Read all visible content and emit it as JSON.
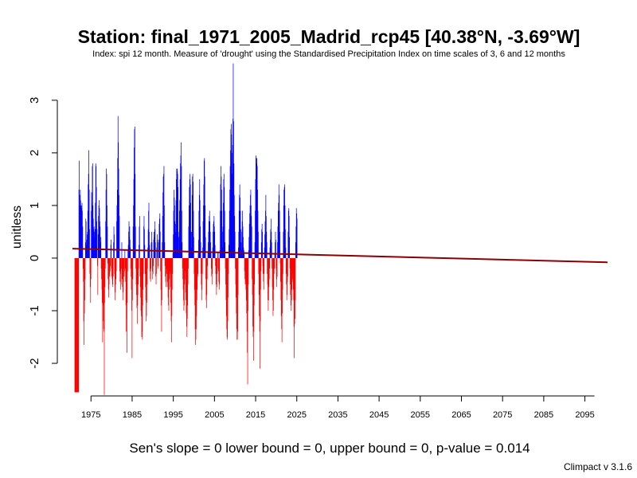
{
  "chart_data": {
    "type": "bar",
    "title": "Station: final_1971_2005_Madrid_rcp45 [40.38°N, -3.69°W]",
    "subtitle": "Index: spi 12 month. Measure of 'drought' using the Standardised Precipitation Index on time scales of 3, 6 and 12 months",
    "xlabel": "",
    "ylabel": "unitless",
    "xlim": [
      1970.5,
      2100.5
    ],
    "ylim": [
      -2.62,
      3.8
    ],
    "x_ticks": [
      1975,
      1985,
      1995,
      2005,
      2015,
      2025,
      2035,
      2045,
      2055,
      2065,
      2075,
      2085,
      2095
    ],
    "y_ticks": [
      -2,
      -1,
      0,
      1,
      2,
      3
    ],
    "positive_color": "#0000ff",
    "negative_color": "#ff0000",
    "trend_color": "#8b0000",
    "x_start": 1971.0,
    "x_step": 0.08333,
    "values": [
      -2.55,
      -2.55,
      -2.55,
      -2.55,
      -2.55,
      -2.55,
      -2.55,
      -2.55,
      -2.55,
      -2.55,
      -2.55,
      -2.55,
      1.3,
      1.85,
      1.0,
      1.2,
      1.3,
      1.1,
      1.0,
      0.95,
      1.0,
      1.05,
      0.9,
      0.6,
      -0.2,
      -0.45,
      -1.2,
      -1.65,
      -1.05,
      -0.8,
      -0.4,
      0.3,
      0.75,
      0.7,
      0.25,
      0.35,
      0.45,
      0.5,
      0.9,
      1.4,
      1.6,
      2.05,
      1.3,
      0.55,
      -0.3,
      -0.55,
      -0.85,
      -0.4,
      0.9,
      1.25,
      1.05,
      1.75,
      1.8,
      1.0,
      0.75,
      0.55,
      0.6,
      0.4,
      0.5,
      0.55,
      1.05,
      1.8,
      1.75,
      1.35,
      0.7,
      0.55,
      -0.15,
      -0.7,
      0.45,
      0.8,
      1.0,
      1.1,
      0.95,
      0.7,
      0.6,
      0.3,
      0.4,
      -0.2,
      -0.4,
      -0.6,
      -0.85,
      -1.6,
      -0.9,
      -1.2,
      -1.35,
      -1.4,
      -2.6,
      -0.85,
      -0.55,
      -0.2,
      0.7,
      1.3,
      1.7,
      1.6,
      1.0,
      0.6,
      -0.1,
      -0.4,
      -0.6,
      -0.75,
      -0.5,
      -0.3,
      -0.35,
      -0.25,
      -0.15,
      0.25,
      0.35,
      -0.2,
      -0.35,
      -0.4,
      -0.5,
      -0.55,
      -0.35,
      0.3,
      0.6,
      0.45,
      -0.3,
      -0.8,
      -0.65,
      -0.5,
      -0.4,
      -0.25,
      0.7,
      1.0,
      1.3,
      1.9,
      2.7,
      2.2,
      1.7,
      1.2,
      0.8,
      -0.25,
      -0.45,
      -0.3,
      -0.6,
      -0.5,
      -0.2,
      0.3,
      -0.4,
      -0.55,
      -0.8,
      -0.65,
      -0.45,
      -0.2,
      -0.35,
      -0.25,
      0.15,
      -0.2,
      -0.45,
      -0.9,
      -1.4,
      -1.15,
      -1.8,
      -0.85,
      -0.25,
      0.15,
      0.25,
      0.5,
      0.7,
      0.4,
      0.6,
      0.35,
      0.2,
      -0.2,
      -0.35,
      -0.6,
      -1.0,
      -1.9,
      -0.8,
      -0.4,
      0.6,
      1.0,
      1.5,
      2.1,
      2.45,
      2.5,
      1.6,
      0.6,
      -0.2,
      -0.5,
      -0.7,
      -0.95,
      -1.25,
      -0.9,
      -0.7,
      -0.5,
      -0.2,
      0.25,
      0.6,
      0.8,
      -0.35,
      -0.55,
      -0.75,
      -1.0,
      -1.1,
      -1.5,
      -1.4,
      -1.55,
      -0.9,
      -0.6,
      -0.3,
      0.6,
      0.8,
      0.55,
      0.25,
      -0.3,
      -0.55,
      -0.8,
      -1.2,
      -1.1,
      -0.85,
      -0.5,
      -0.2,
      0.2,
      0.55,
      0.9,
      1.05,
      0.5,
      0.25,
      -0.25,
      -0.4,
      -0.45,
      -0.2,
      0.3,
      0.5,
      0.3,
      -0.25,
      -0.4,
      -0.3,
      -0.15,
      0.35,
      0.5,
      0.4,
      0.7,
      0.55,
      0.3,
      -0.35,
      -0.5,
      -0.3,
      0.2,
      0.45,
      0.35,
      -0.2,
      -0.15,
      0.3,
      0.35,
      0.65,
      0.75,
      0.85,
      0.5,
      -0.25,
      -0.6,
      -0.9,
      -1.4,
      -0.8,
      0.3,
      0.8,
      1.25,
      1.55,
      1.6,
      1.75,
      1.0,
      0.3,
      -0.15,
      -0.35,
      -0.45,
      -0.55,
      -0.3,
      -0.2,
      -0.3,
      -0.45,
      -0.55,
      -0.75,
      -0.9,
      -1.0,
      -0.6,
      -0.4,
      -0.25,
      -0.3,
      -0.55,
      -0.85,
      -1.2,
      -1.6,
      -1.1,
      -0.6,
      -0.3,
      0.1,
      0.45,
      0.9,
      1.3,
      1.15,
      1.0,
      0.7,
      0.5,
      0.65,
      1.1,
      1.5,
      1.7,
      1.65,
      1.7,
      1.6,
      1.35,
      0.5,
      0.1,
      0.4,
      0.9,
      1.1,
      1.5,
      1.8,
      1.95,
      2.2,
      1.75,
      0.9,
      0.3,
      -0.2,
      -0.4,
      -0.6,
      -0.8,
      -1.0,
      -0.9,
      -0.5,
      -0.25,
      -0.4,
      -0.65,
      -0.8,
      -1.05,
      -1.3,
      -1.5,
      -1.15,
      -0.9,
      -0.5,
      -0.2,
      0.6,
      1.0,
      1.35,
      1.5,
      1.6,
      1.4,
      1.05,
      0.5,
      0.2,
      0.5,
      1.2,
      1.55,
      1.6,
      1.45,
      0.9,
      0.4,
      -0.3,
      -0.6,
      -0.9,
      -1.35,
      -1.65,
      -1.55,
      -1.35,
      -1.1,
      -0.8,
      -0.6,
      -0.35,
      -0.3,
      0.1,
      0.35,
      0.9,
      1.2,
      1.5,
      1.1,
      0.6,
      0.3,
      -0.3,
      -0.5,
      -0.8,
      -0.6,
      -0.3,
      0.2,
      0.7,
      1.0,
      1.4,
      1.85,
      1.9,
      1.55,
      1.0,
      0.4,
      -0.4,
      -0.8,
      -0.95,
      -0.7,
      -0.4,
      -0.15,
      0.1,
      0.3,
      0.5,
      0.7,
      0.8,
      0.9,
      0.7,
      0.5,
      0.3,
      0.1,
      -0.2,
      -0.35,
      -0.5,
      -0.3,
      0.2,
      0.5,
      0.65,
      0.7,
      0.8,
      0.6,
      0.5,
      0.25,
      -0.15,
      -0.3,
      -0.5,
      -0.7,
      -0.55,
      -0.3,
      -0.2,
      0.1,
      0.1,
      -0.25,
      -0.45,
      -0.6,
      -0.5,
      0.15,
      0.9,
      1.4,
      1.75,
      1.55,
      1.3,
      0.9,
      0.5,
      0.2,
      0.6,
      1.05,
      1.5,
      1.6,
      1.35,
      0.9,
      0.3,
      -0.2,
      -0.5,
      -0.8,
      -1.1,
      -1.35,
      -1.5,
      -1.55,
      -1.2,
      -0.75,
      -0.3,
      0.25,
      0.55,
      0.9,
      1.3,
      1.75,
      2.05,
      2.45,
      2.55,
      2.35,
      2.0,
      1.6,
      2.15,
      2.65,
      3.7,
      2.6,
      1.8,
      1.2,
      0.8,
      0.5,
      -0.2,
      -0.5,
      -0.75,
      -1.05,
      -1.35,
      -1.55,
      -1.55,
      -1.4,
      -0.7,
      0.2,
      0.5,
      0.9,
      1.2,
      1.4,
      1.15,
      0.9,
      0.55,
      0.3,
      0.15,
      0.5,
      0.7,
      0.9,
      0.6,
      0.4,
      0.2,
      0.15,
      0.1,
      -0.25,
      -0.4,
      -0.5,
      -0.45,
      -0.6,
      -0.8,
      -1.05,
      -1.4,
      -1.8,
      -2.4,
      -1.0,
      -0.5,
      0.15,
      0.4,
      0.65,
      0.85,
      1.0,
      1.2,
      1.3,
      1.0,
      0.8,
      0.6,
      -0.4,
      -0.7,
      -1.3,
      -1.5,
      -1.95,
      -1.4,
      -0.9,
      -0.5,
      0.3,
      0.9,
      1.5,
      1.95,
      1.9,
      1.8,
      1.9,
      1.75,
      1.3,
      0.9,
      0.5,
      -0.3,
      -0.7,
      -1.1,
      -1.4,
      -2.1,
      -1.2,
      -0.6,
      -0.25,
      0.3,
      0.55,
      0.65,
      0.5,
      -0.15,
      -0.3,
      -0.45,
      -0.6,
      -0.3,
      0.2,
      0.45,
      0.7,
      0.9,
      1.2,
      0.8,
      0.5,
      0.3,
      -0.3,
      -0.5,
      -0.8,
      -1.0,
      -0.8,
      -0.55,
      -0.4,
      -0.2,
      0.2,
      0.35,
      0.55,
      0.75,
      0.5,
      0.3,
      -0.2,
      -0.55,
      -0.8,
      -1.1,
      -1.0,
      -0.6,
      -0.3,
      -0.2,
      0.1,
      0.3,
      0.5,
      0.35,
      -0.2,
      -0.4,
      -0.55,
      -0.35,
      0.3,
      0.6,
      0.9,
      1.05,
      1.4,
      1.2,
      0.9,
      0.5,
      -0.1,
      -0.45,
      -0.8,
      -1.1,
      -1.35,
      -1.6,
      -1.05,
      -0.6,
      -0.3,
      0.5,
      1.0,
      1.3,
      1.35,
      1.4,
      1.0,
      0.55,
      0.2,
      -0.3,
      -0.5,
      -0.8,
      -0.7,
      -0.45,
      -0.35,
      0.5,
      0.9,
      0.95,
      0.8,
      0.4,
      -0.2,
      -0.5,
      -0.7,
      -0.9,
      -1.0,
      -0.8,
      -0.6,
      -0.4,
      -0.3,
      -0.45,
      -0.6,
      -0.8,
      -1.3,
      -1.9,
      -1.25,
      -1.15,
      -0.8,
      0.3,
      0.6,
      0.95,
      0.85,
      0.75
    ]
  },
  "trend_line": {
    "x": [
      1970.5,
      2100.5
    ],
    "y": [
      0.18,
      -0.08
    ]
  },
  "footer": "Sen's slope = 0   lower bound = 0,   upper bound = 0,   p-value = 0.014",
  "credit": "Climpact v 3.1.6"
}
